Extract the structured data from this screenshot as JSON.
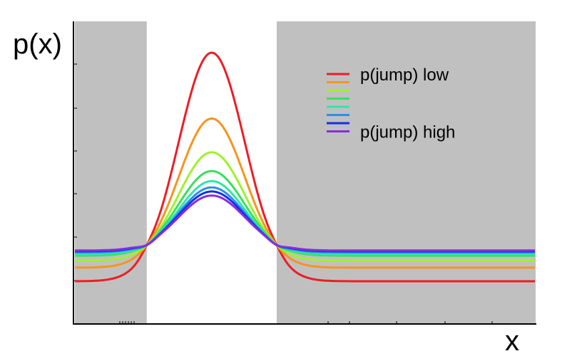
{
  "chart_data": {
    "type": "line",
    "title": "",
    "ylabel": "p(x)",
    "xlabel": "x",
    "grid": false,
    "legend_placement": "top-right",
    "xlim": [
      0,
      100
    ],
    "ylim": [
      0,
      1
    ],
    "shaded_regions": [
      {
        "x0": 0,
        "x1": 15.6,
        "color": "#c0c0c0"
      },
      {
        "x0": 43.8,
        "x1": 100,
        "color": "#c0c0c0"
      }
    ],
    "series": [
      {
        "name": "p(jump) low",
        "color": "#ee1c25",
        "baseline": 0.16,
        "peak": 1.0
      },
      {
        "color": "#f7941d",
        "baseline": 0.21,
        "peak": 0.758
      },
      {
        "color": "#9ef22e",
        "baseline": 0.236,
        "peak": 0.634
      },
      {
        "color": "#39e05a",
        "baseline": 0.254,
        "peak": 0.565
      },
      {
        "color": "#2ee6a8",
        "baseline": 0.26,
        "peak": 0.528
      },
      {
        "color": "#2a8fe8",
        "baseline": 0.266,
        "peak": 0.505
      },
      {
        "color": "#1230e6",
        "baseline": 0.27,
        "peak": 0.49
      },
      {
        "name": "p(jump) high",
        "color": "#8a2be2",
        "baseline": 0.273,
        "peak": 0.475
      }
    ],
    "legend": {
      "entries": [
        {
          "label": "p(jump) low",
          "color": "#ee1c25"
        },
        {
          "label": "",
          "color": "#f7941d"
        },
        {
          "label": "",
          "color": "#9ef22e"
        },
        {
          "label": "",
          "color": "#39e05a"
        },
        {
          "label": "",
          "color": "#2ee6a8"
        },
        {
          "label": "",
          "color": "#2a8fe8"
        },
        {
          "label": "",
          "color": "#1230e6"
        },
        {
          "label": "p(jump) high",
          "color": "#8a2be2"
        }
      ]
    }
  }
}
